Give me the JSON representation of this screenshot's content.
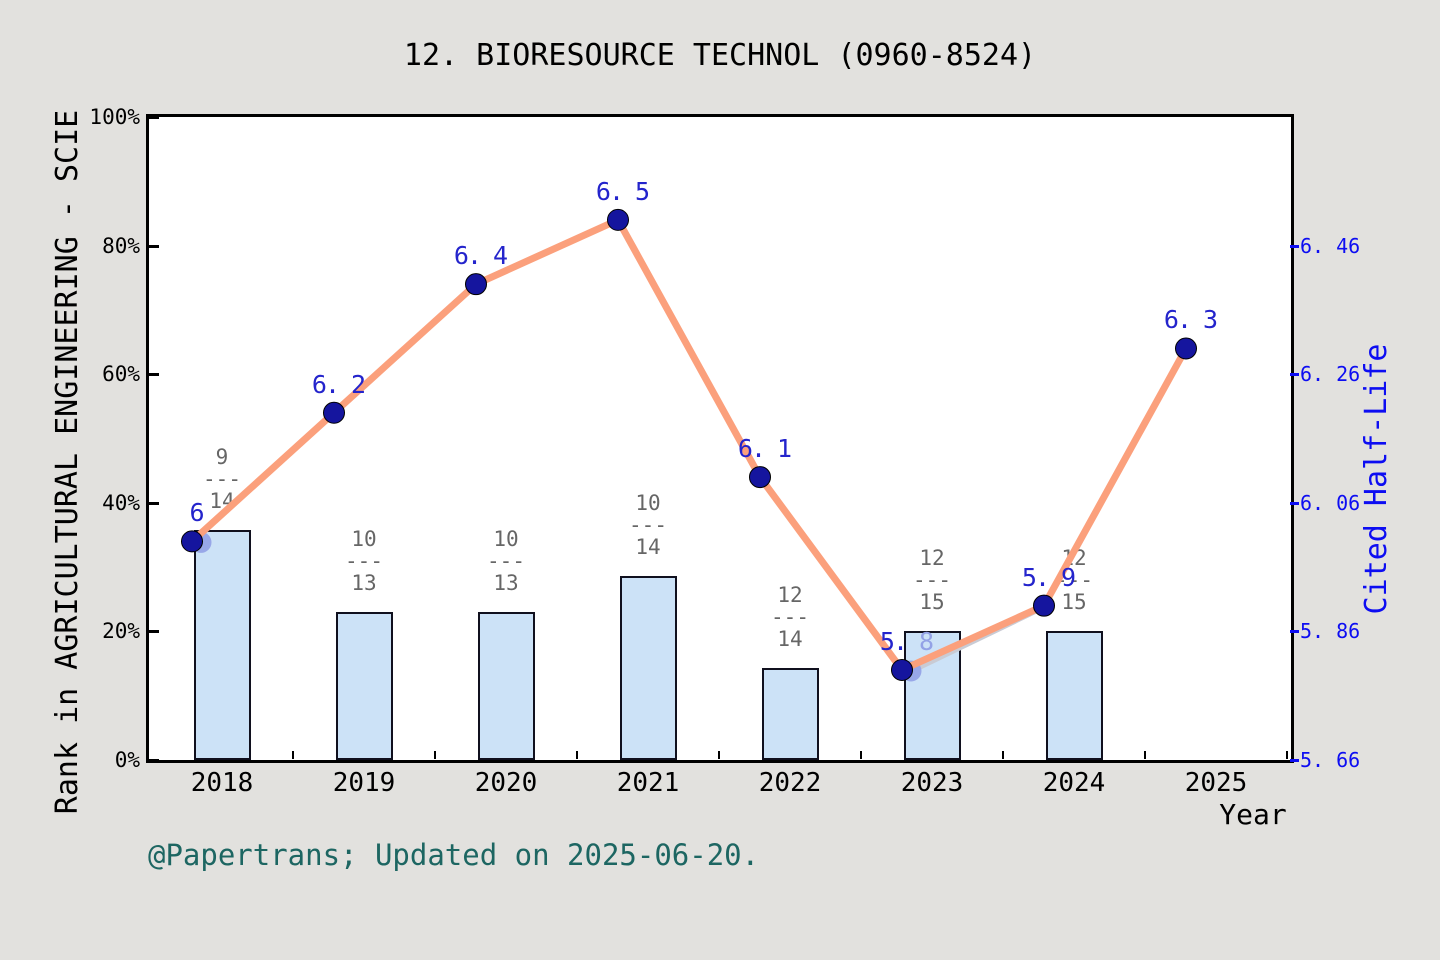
{
  "title": "12. BIORESOURCE TECHNOL (0960-8524)",
  "caption": "@Papertrans; Updated on 2025-06-20.",
  "chart_data": {
    "type": "bar+line",
    "x_axis": {
      "label": "Year",
      "categories": [
        "2018",
        "2019",
        "2020",
        "2021",
        "2022",
        "2023",
        "2024",
        "2025"
      ]
    },
    "left_axis": {
      "label": "Rank in AGRICULTURAL ENGINEERING - SCIE",
      "ticks": [
        "0%",
        "20%",
        "40%",
        "60%",
        "80%",
        "100%"
      ],
      "tick_values": [
        0,
        20,
        40,
        60,
        80,
        100
      ],
      "range": [
        0,
        100
      ]
    },
    "right_axis": {
      "label": "Cited Half-Life",
      "ticks": [
        "5. 66",
        "5. 86",
        "6. 06",
        "6. 26",
        "6. 46"
      ],
      "tick_values": [
        5.66,
        5.86,
        6.06,
        6.26,
        6.46
      ],
      "value_at_bottom": 5.66,
      "units_per_full_height": 1.0
    },
    "bars": {
      "name": "rank-fraction-bars",
      "items": [
        {
          "year": "2018",
          "num": "9",
          "den": "14",
          "pct": 35.71
        },
        {
          "year": "2019",
          "num": "10",
          "den": "13",
          "pct": 23.08
        },
        {
          "year": "2020",
          "num": "10",
          "den": "13",
          "pct": 23.08
        },
        {
          "year": "2021",
          "num": "10",
          "den": "14",
          "pct": 28.57
        },
        {
          "year": "2022",
          "num": "12",
          "den": "14",
          "pct": 14.29
        },
        {
          "year": "2023",
          "num": "12",
          "den": "15",
          "pct": 20.0
        },
        {
          "year": "2024",
          "num": "12",
          "den": "15",
          "pct": 20.0
        }
      ],
      "fraction_separator": "---"
    },
    "line": {
      "name": "cited-half-life-line",
      "points": [
        {
          "year": "2018",
          "value": 6.0,
          "label": "6",
          "light_suffix": ""
        },
        {
          "year": "2019",
          "value": 6.2,
          "label": "6. 2",
          "light_suffix": ""
        },
        {
          "year": "2020",
          "value": 6.4,
          "label": "6. 4",
          "light_suffix": ""
        },
        {
          "year": "2021",
          "value": 6.5,
          "label": "6. 5",
          "light_suffix": ""
        },
        {
          "year": "2022",
          "value": 6.1,
          "label": "6. 1",
          "light_suffix": ""
        },
        {
          "year": "2023",
          "value": 5.8,
          "label": "5. ",
          "light_suffix": "8"
        },
        {
          "year": "2024",
          "value": 5.9,
          "label": "5. 9",
          "light_suffix": ""
        },
        {
          "year": "2025",
          "value": 6.3,
          "label": "6. 3",
          "light_suffix": ""
        }
      ],
      "shadow_dot_indices": [
        0,
        5
      ],
      "shadow_segment": {
        "from_index": 5,
        "to_index": 6
      }
    },
    "colors": {
      "background": "#e2e1de",
      "plot_background": "#ffffff",
      "bar_fill": "#cce2f7",
      "bar_border": "#10101e",
      "line": "#fba07c",
      "point": "#15159e",
      "point_label": "#2424cc",
      "point_label_light": "#93a2e6",
      "right_axis_text": "#0d0df2",
      "fraction_text": "#666666",
      "caption_text": "#1d6662",
      "shadow_dot": "#98a7e8",
      "shadow_line": "#c9cbd4"
    }
  }
}
